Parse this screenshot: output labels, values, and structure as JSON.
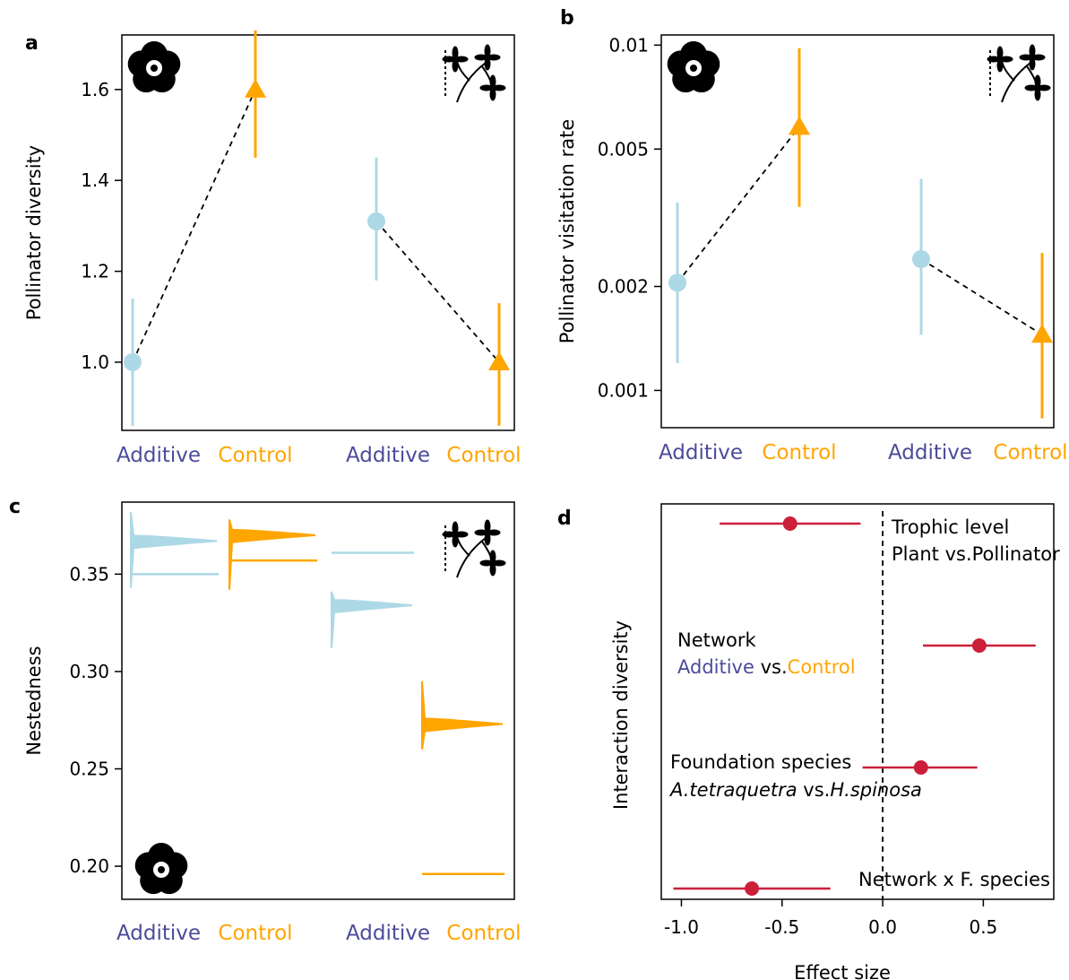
{
  "colors": {
    "additive": "#add8e6",
    "control": "#ffa500",
    "effect": "#cc1f3a",
    "additive_label": "#4b4b9a"
  },
  "icons": [
    "flower-icon",
    "shrub-icon"
  ],
  "chart_data": [
    {
      "panel": "a",
      "type": "scatter",
      "ylabel": "Pollinator diversity",
      "ylim": [
        0.85,
        1.72
      ],
      "yticks": [
        1.0,
        1.2,
        1.4,
        1.6
      ],
      "ytick_labels": [
        "1.0",
        "1.2",
        "1.4",
        "1.6"
      ],
      "categories": [
        "Additive",
        "Control",
        "Additive",
        "Control"
      ],
      "groups": [
        "flower",
        "shrub"
      ],
      "points": [
        {
          "category": "Additive",
          "group": "flower",
          "y": 1.0,
          "low": 0.86,
          "high": 1.14
        },
        {
          "category": "Control",
          "group": "flower",
          "y": 1.6,
          "low": 1.45,
          "high": 1.73
        },
        {
          "category": "Additive",
          "group": "shrub",
          "y": 1.31,
          "low": 1.18,
          "high": 1.45
        },
        {
          "category": "Control",
          "group": "shrub",
          "y": 1.0,
          "low": 0.86,
          "high": 1.13
        }
      ]
    },
    {
      "panel": "b",
      "type": "scatter",
      "yscale": "log",
      "ylabel": "Pollinator visitation rate",
      "ylim": [
        0.00078,
        0.0107
      ],
      "yticks": [
        0.001,
        0.002,
        0.005,
        0.01
      ],
      "ytick_labels": [
        "0.001",
        "0.002",
        "0.005",
        "0.01"
      ],
      "categories": [
        "Additive",
        "Control",
        "Additive",
        "Control"
      ],
      "groups": [
        "flower",
        "shrub"
      ],
      "points": [
        {
          "category": "Additive",
          "group": "flower",
          "y": 0.00205,
          "low": 0.0012,
          "high": 0.0035
        },
        {
          "category": "Control",
          "group": "flower",
          "y": 0.0058,
          "low": 0.0034,
          "high": 0.0098
        },
        {
          "category": "Additive",
          "group": "shrub",
          "y": 0.0024,
          "low": 0.00145,
          "high": 0.0041
        },
        {
          "category": "Control",
          "group": "shrub",
          "y": 0.00145,
          "low": 0.00083,
          "high": 0.0025
        }
      ]
    },
    {
      "panel": "c",
      "type": "violin",
      "ylabel": "Nestedness",
      "ylim": [
        0.183,
        0.387
      ],
      "yticks": [
        0.2,
        0.25,
        0.3,
        0.35
      ],
      "ytick_labels": [
        "0.20",
        "0.25",
        "0.30",
        "0.35"
      ],
      "categories": [
        "Additive",
        "Control",
        "Additive",
        "Control"
      ],
      "groups": [
        "flower",
        "shrub"
      ],
      "distributions": [
        {
          "category": "Additive",
          "group": "flower",
          "mode": 0.367,
          "min": 0.343,
          "max": 0.382,
          "observed": 0.35
        },
        {
          "category": "Control",
          "group": "flower",
          "mode": 0.37,
          "min": 0.342,
          "max": 0.378,
          "observed": 0.357
        },
        {
          "category": "Additive",
          "group": "shrub",
          "mode": 0.334,
          "min": 0.312,
          "max": 0.341,
          "observed": 0.361
        },
        {
          "category": "Control",
          "group": "shrub",
          "mode": 0.273,
          "min": 0.26,
          "max": 0.295,
          "observed": 0.196
        }
      ]
    },
    {
      "panel": "d",
      "type": "scatter",
      "xlabel": "Effect size",
      "ylabel": "Interaction diversity",
      "xlim": [
        -1.1,
        0.85
      ],
      "xticks": [
        -1.0,
        -0.5,
        0.0,
        0.5
      ],
      "xtick_labels": [
        "-1.0",
        "-0.5",
        "0.0",
        "0.5"
      ],
      "effects": [
        {
          "label": "Trophic level",
          "estimate": -0.46,
          "low": -0.81,
          "high": -0.11
        },
        {
          "label": "Network",
          "estimate": 0.48,
          "low": 0.2,
          "high": 0.76
        },
        {
          "label": "Foundation species",
          "estimate": 0.19,
          "low": -0.1,
          "high": 0.47
        },
        {
          "label": "Network x F. species",
          "estimate": -0.65,
          "low": -1.04,
          "high": -0.26
        }
      ],
      "annotations": {
        "trophic_line1": "Trophic level",
        "trophic_line2": "Plant vs.Pollinator",
        "network_line1": "Network",
        "network_add": "Additive",
        "network_vs": " vs.",
        "network_ctrl": "Control",
        "foundation_line1": "Foundation species",
        "foundation_sp1": "A.tetraquetra",
        "foundation_vs": " vs.",
        "foundation_sp2": "H.spinosa",
        "interaction": "Network x F. species"
      }
    }
  ]
}
